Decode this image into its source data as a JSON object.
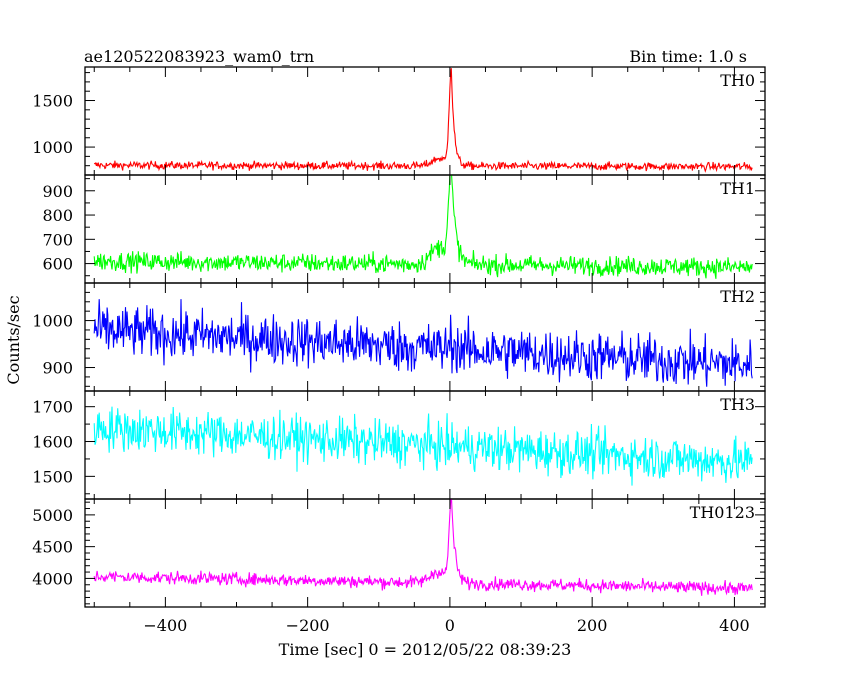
{
  "chart_data": {
    "type": "line",
    "title": "ae120522083923_wam0_trn",
    "bin_time_label": "Bin time: 1.0 s",
    "ylabel": "Counts/sec",
    "xlabel": "Time [sec] 0 = 2012/05/22 08:39:23",
    "xlim": [
      -513,
      443
    ],
    "x_ticks": [
      -400,
      -200,
      0,
      200,
      400
    ],
    "x_tick_labels": [
      "−400",
      "−200",
      "0",
      "200",
      "400"
    ],
    "x_range": [
      -500,
      425
    ],
    "grid": false,
    "panels": [
      {
        "name": "TH0",
        "color": "#ff0000",
        "ylim": [
          700,
          1860
        ],
        "yticks": [
          1000,
          1500
        ],
        "yticks_minor": [
          800,
          900,
          1100,
          1200,
          1300,
          1400,
          1600,
          1700,
          1800
        ],
        "baseline_start": 805,
        "baseline_end": 790,
        "noise": 30,
        "peak": {
          "t": 2,
          "height": 1050,
          "rise": 3,
          "decay": 4
        },
        "bump": {
          "t": -15,
          "height": 80,
          "width": 10
        }
      },
      {
        "name": "TH1",
        "color": "#00ff00",
        "ylim": [
          520,
          965
        ],
        "yticks": [
          600,
          700,
          800,
          900
        ],
        "yticks_minor": [
          550,
          650,
          750,
          850,
          950
        ],
        "baseline_start": 610,
        "baseline_end": 585,
        "noise": 28,
        "peak": {
          "t": 2,
          "height": 360,
          "rise": 4,
          "decay": 6
        },
        "bump": {
          "t": -15,
          "height": 70,
          "width": 12
        }
      },
      {
        "name": "TH2",
        "color": "#0000ff",
        "ylim": [
          850,
          1080
        ],
        "yticks": [
          900,
          1000
        ],
        "yticks_minor": [
          860,
          880,
          920,
          940,
          960,
          980,
          1020,
          1040,
          1060
        ],
        "baseline_start": 980,
        "baseline_end": 905,
        "noise": 38,
        "peak": {
          "t": 2,
          "height": 20,
          "rise": 3,
          "decay": 4
        },
        "bump": {
          "t": -20,
          "height": 0,
          "width": 10
        }
      },
      {
        "name": "TH3",
        "color": "#00ffff",
        "ylim": [
          1435,
          1745
        ],
        "yticks": [
          1500,
          1600,
          1700
        ],
        "yticks_minor": [
          1450,
          1550,
          1650
        ],
        "baseline_start": 1640,
        "baseline_end": 1540,
        "noise": 45,
        "peak": {
          "t": 2,
          "height": 0,
          "rise": 3,
          "decay": 4
        },
        "bump": {
          "t": -20,
          "height": 0,
          "width": 10
        }
      },
      {
        "name": "TH0123",
        "color": "#ff00ff",
        "ylim": [
          3550,
          5250
        ],
        "yticks": [
          4000,
          4500,
          5000
        ],
        "yticks_minor": [
          3600,
          3700,
          3800,
          3900,
          4100,
          4200,
          4300,
          4400,
          4600,
          4700,
          4800,
          4900,
          5100,
          5200
        ],
        "baseline_start": 4030,
        "baseline_end": 3840,
        "noise": 70,
        "peak": {
          "t": 2,
          "height": 1300,
          "rise": 3,
          "decay": 5
        },
        "bump": {
          "t": -15,
          "height": 180,
          "width": 12
        }
      }
    ]
  }
}
